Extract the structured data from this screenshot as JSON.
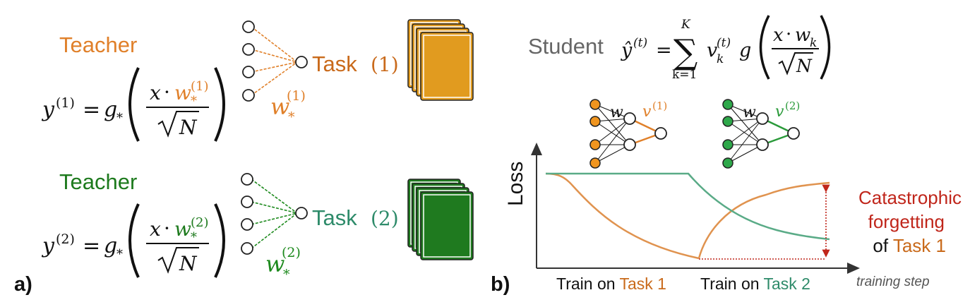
{
  "colors": {
    "task1": "#e0934f",
    "task1_dark": "#c96a1b",
    "task1_fill": "#e19b1f",
    "task2": "#5aab87",
    "task2_text": "#2e8b6a",
    "teacher2": "#1d7a1d",
    "task2_fill": "#1f7a1f",
    "forgetting": "#c0261b",
    "gray": "#666666"
  },
  "panel_a": {
    "label": "a)",
    "teacher1": {
      "title": "Teacher",
      "eq_lhs": "y",
      "eq_sup": "(1)",
      "eq_eq": "=",
      "eq_g": "g",
      "eq_gsub": "*",
      "eq_num_x": "x",
      "eq_num_dot": "·",
      "eq_num_w": "w",
      "eq_num_wsub": "*",
      "eq_num_wsup": "(1)",
      "eq_den": "N",
      "weight_label": "w",
      "weight_sub": "*",
      "weight_sup": "(1)",
      "task_label": "Task",
      "task_index": "(1)"
    },
    "teacher2": {
      "title": "Teacher",
      "eq_lhs": "y",
      "eq_sup": "(2)",
      "eq_eq": "=",
      "eq_g": "g",
      "eq_gsub": "*",
      "eq_num_x": "x",
      "eq_num_dot": "·",
      "eq_num_w": "w",
      "eq_num_wsub": "*",
      "eq_num_wsup": "(2)",
      "eq_den": "N",
      "weight_label": "w",
      "weight_sub": "*",
      "weight_sup": "(2)",
      "task_label": "Task",
      "task_index": "(2)"
    }
  },
  "panel_b": {
    "label": "b)",
    "student": {
      "title": "Student",
      "yhat": "ŷ",
      "yhat_sup": "(t)",
      "eq": "=",
      "sum_top": "K",
      "sum_bottom": "k=1",
      "sigma": "∑",
      "v": "v",
      "v_sub": "k",
      "v_sup": "(t)",
      "g": "g",
      "num_x": "x",
      "num_dot": "·",
      "num_w": "w",
      "num_wsub": "k",
      "den": "N"
    },
    "net1": {
      "w_label": "w",
      "v_label": "v",
      "v_sup": "(1)"
    },
    "net2": {
      "w_label": "w",
      "v_label": "v",
      "v_sup": "(2)"
    },
    "ylabel": "Loss",
    "xlabel": "training step",
    "phase1_prefix": "Train on ",
    "phase1_task": "Task 1",
    "phase2_prefix": "Train on ",
    "phase2_task": "Task 2",
    "forgetting_line1": "Catastrophic",
    "forgetting_line2": "forgetting",
    "forgetting_of": "of ",
    "forgetting_task": "Task 1"
  }
}
